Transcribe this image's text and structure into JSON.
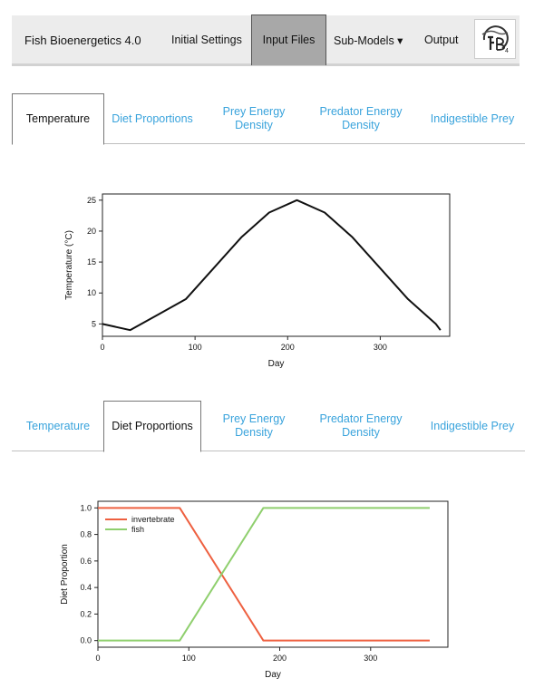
{
  "app": {
    "title": "Fish Bioenergetics 4.0",
    "nav": [
      {
        "label": "Initial Settings",
        "active": false
      },
      {
        "label": "Input Files",
        "active": true
      },
      {
        "label": "Sub-Models ▾",
        "active": false
      },
      {
        "label": "Output",
        "active": false
      }
    ],
    "logo_icon": "fb4-logo-icon"
  },
  "tabs_top": {
    "active": "Temperature",
    "items": [
      {
        "label": "Temperature"
      },
      {
        "label": "Diet Proportions"
      },
      {
        "label": "Prey Energy Density"
      },
      {
        "label": "Predator Energy Density"
      },
      {
        "label": "Indigestible Prey"
      }
    ]
  },
  "tabs_bottom": {
    "active": "Diet Proportions",
    "items": [
      {
        "label": "Temperature"
      },
      {
        "label": "Diet Proportions"
      },
      {
        "label": "Prey Energy Density"
      },
      {
        "label": "Predator Energy Density"
      },
      {
        "label": "Indigestible Prey"
      }
    ]
  },
  "colors": {
    "tab_link": "#39a3dc",
    "nav_active": "#a8a8a8",
    "invertebrate": "#ee6040",
    "fish": "#8fcf6e"
  },
  "chart_data": [
    {
      "type": "line",
      "xlabel": "Day",
      "ylabel": "Temperature (°C)",
      "xlim": [
        0,
        375
      ],
      "ylim": [
        3,
        26
      ],
      "xticks": [
        0,
        100,
        200,
        300
      ],
      "yticks": [
        5,
        10,
        15,
        20,
        25
      ],
      "grid": false,
      "series": [
        {
          "color": "#111111",
          "x": [
            0,
            30,
            60,
            90,
            120,
            150,
            180,
            210,
            240,
            270,
            300,
            330,
            360,
            365
          ],
          "y": [
            5,
            4,
            6.5,
            9,
            14,
            19,
            23,
            25,
            23,
            19,
            14,
            9,
            5,
            4
          ]
        }
      ]
    },
    {
      "type": "line",
      "xlabel": "Day",
      "ylabel": "Diet Proportion",
      "xlim": [
        0,
        385
      ],
      "ylim": [
        -0.05,
        1.05
      ],
      "xticks": [
        0,
        100,
        200,
        300
      ],
      "yticks": [
        0.0,
        0.2,
        0.4,
        0.6,
        0.8,
        1.0
      ],
      "ytick_labels": [
        "0.0",
        "0.2",
        "0.4",
        "0.6",
        "0.8",
        "1.0"
      ],
      "grid": false,
      "legend": "top-left",
      "series": [
        {
          "name": "invertebrate",
          "color": "#ee6040",
          "x": [
            0,
            90,
            182,
            365
          ],
          "y": [
            1,
            1,
            0,
            0
          ]
        },
        {
          "name": "fish",
          "color": "#8fcf6e",
          "x": [
            0,
            90,
            182,
            365
          ],
          "y": [
            0,
            0,
            1,
            1
          ]
        }
      ]
    }
  ]
}
